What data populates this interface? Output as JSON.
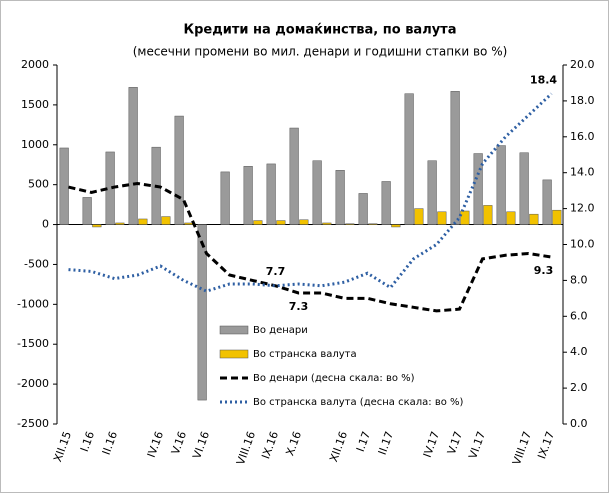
{
  "chart_data": {
    "type": "bar",
    "title": "Кредити на домаќинства, по валута",
    "subtitle": "(месечни промени во мил. денари и годишни стапки во %)",
    "categories": [
      "XII.15",
      "I.16",
      "II.16",
      null,
      "IV.16",
      "V.16",
      "VI.16",
      null,
      "VIII.16",
      "IX.16",
      "X.16",
      null,
      "XII.16",
      "I.17",
      "II.17",
      null,
      "IV.17",
      "V.17",
      "VI.17",
      null,
      "VIII.17",
      "IX.17"
    ],
    "series": [
      {
        "name": "Во денари",
        "type": "bar",
        "color": "#9a9a9a",
        "axis": "y",
        "values": [
          960,
          340,
          910,
          1720,
          970,
          1360,
          -2200,
          660,
          730,
          760,
          1210,
          800,
          680,
          390,
          540,
          1640,
          800,
          1670,
          890,
          990,
          900,
          560
        ]
      },
      {
        "name": "Во странска валута",
        "type": "bar",
        "color": "#f2c200",
        "axis": "y",
        "values": [
          0,
          -30,
          20,
          70,
          100,
          20,
          0,
          0,
          50,
          50,
          60,
          20,
          10,
          10,
          -30,
          200,
          160,
          170,
          240,
          160,
          130,
          180
        ]
      },
      {
        "name": "Во денари  (десна скала: во %)",
        "type": "line",
        "style": "dashed",
        "color": "#000000",
        "axis": "y2",
        "values": [
          13.2,
          12.9,
          13.2,
          13.4,
          13.2,
          12.5,
          9.5,
          8.3,
          8.0,
          7.7,
          7.3,
          7.3,
          7.0,
          7.0,
          6.7,
          6.5,
          6.3,
          6.4,
          9.2,
          9.4,
          9.5,
          9.3
        ]
      },
      {
        "name": "Во странска валута  (десна скала: во %)",
        "type": "line",
        "style": "dotted",
        "color": "#2e5fa3",
        "axis": "y2",
        "values": [
          8.6,
          8.5,
          8.1,
          8.3,
          8.8,
          8.0,
          7.4,
          7.8,
          7.8,
          7.7,
          7.8,
          7.7,
          7.9,
          8.4,
          7.6,
          9.2,
          10.0,
          11.5,
          14.5,
          16.0,
          17.2,
          18.4
        ]
      }
    ],
    "ylim": [
      -2500,
      2000
    ],
    "yticks": [
      -2500,
      -2000,
      -1500,
      -1000,
      -500,
      0,
      500,
      1000,
      1500,
      2000
    ],
    "y2lim": [
      0,
      20
    ],
    "y2ticks": [
      {
        "value": 0,
        "label": "0.0"
      },
      {
        "value": 2,
        "label": "2.0"
      },
      {
        "value": 4,
        "label": "4.0"
      },
      {
        "value": 6,
        "label": "6.0"
      },
      {
        "value": 8,
        "label": "8.0"
      },
      {
        "value": 10,
        "label": "10.0"
      },
      {
        "value": 12,
        "label": "12.0"
      },
      {
        "value": 14,
        "label": "14.0"
      },
      {
        "value": 16,
        "label": "16.0"
      },
      {
        "value": 18,
        "label": "18.0"
      },
      {
        "value": 20,
        "label": "20.0"
      }
    ],
    "point_labels": [
      [
        3,
        9
      ],
      [
        2,
        10
      ],
      [
        3,
        21
      ],
      [
        2,
        21
      ]
    ]
  }
}
